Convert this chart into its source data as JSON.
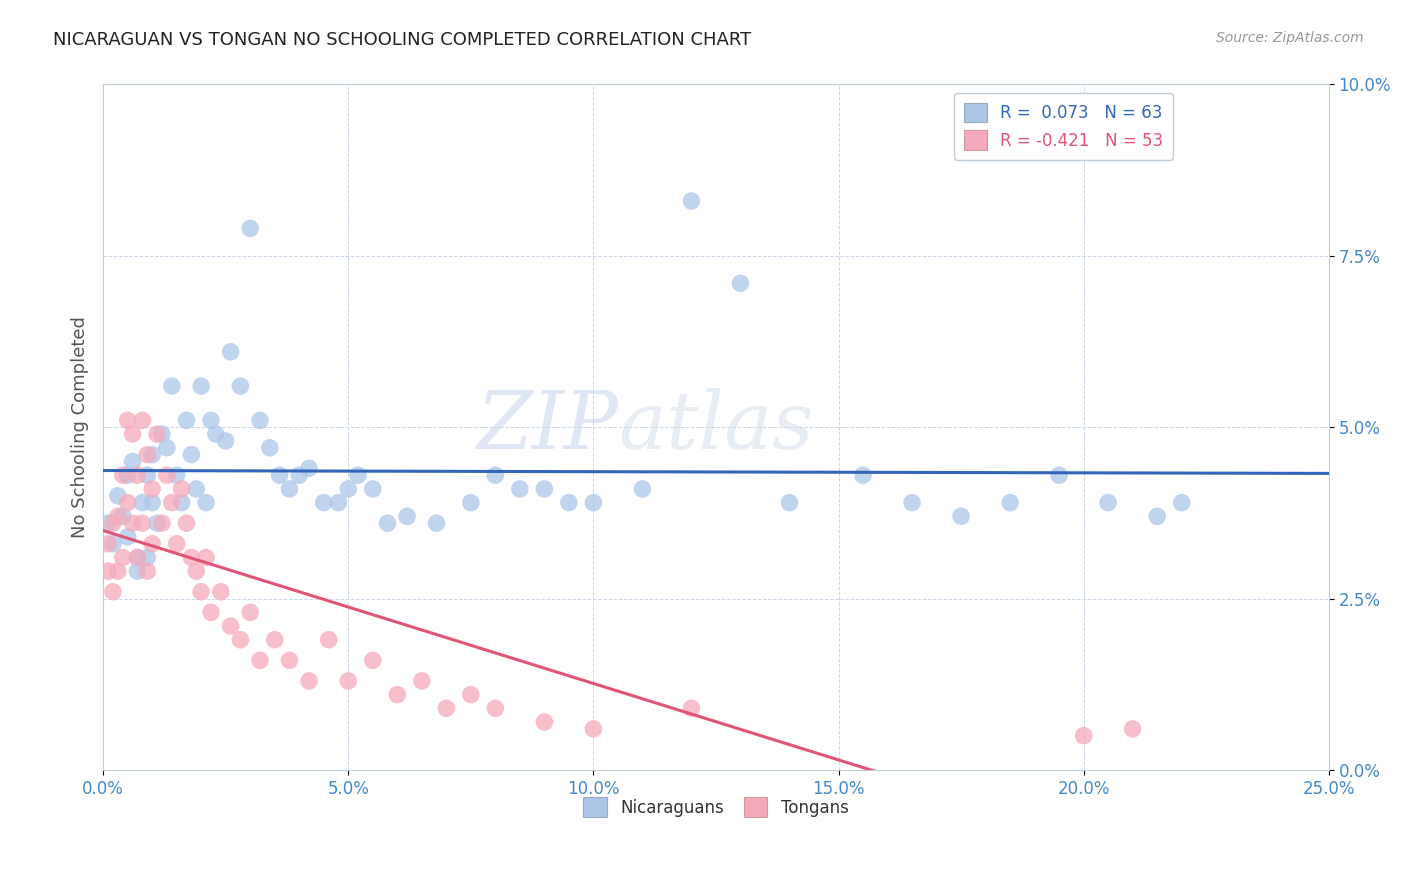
{
  "title": "NICARAGUAN VS TONGAN NO SCHOOLING COMPLETED CORRELATION CHART",
  "source": "Source: ZipAtlas.com",
  "ylabel": "No Schooling Completed",
  "xlim": [
    0.0,
    0.25
  ],
  "ylim": [
    0.0,
    0.1
  ],
  "xticks": [
    0.0,
    0.05,
    0.1,
    0.15,
    0.2,
    0.25
  ],
  "yticks": [
    0.0,
    0.025,
    0.05,
    0.075,
    0.1
  ],
  "nicaraguan_color": "#adc6e8",
  "tongan_color": "#f5aabb",
  "nicaraguan_line_color": "#3366bb",
  "tongan_line_color": "#e05575",
  "legend_label1": "Nicaraguans",
  "legend_label2": "Tongans",
  "R_nic": 0.073,
  "N_nic": 63,
  "R_ton": -0.421,
  "N_ton": 53,
  "background_color": "#ffffff",
  "watermark_zip": "ZIP",
  "watermark_atlas": "atlas",
  "nic_x": [
    0.001,
    0.002,
    0.003,
    0.004,
    0.005,
    0.005,
    0.006,
    0.007,
    0.007,
    0.008,
    0.009,
    0.009,
    0.01,
    0.01,
    0.011,
    0.012,
    0.013,
    0.014,
    0.015,
    0.016,
    0.017,
    0.018,
    0.019,
    0.02,
    0.021,
    0.022,
    0.023,
    0.025,
    0.026,
    0.028,
    0.03,
    0.032,
    0.034,
    0.036,
    0.038,
    0.04,
    0.042,
    0.045,
    0.048,
    0.05,
    0.052,
    0.055,
    0.058,
    0.062,
    0.068,
    0.075,
    0.08,
    0.085,
    0.09,
    0.095,
    0.1,
    0.11,
    0.12,
    0.13,
    0.14,
    0.155,
    0.165,
    0.175,
    0.185,
    0.195,
    0.205,
    0.215,
    0.22
  ],
  "nic_y": [
    0.036,
    0.033,
    0.04,
    0.037,
    0.043,
    0.034,
    0.045,
    0.031,
    0.029,
    0.039,
    0.043,
    0.031,
    0.046,
    0.039,
    0.036,
    0.049,
    0.047,
    0.056,
    0.043,
    0.039,
    0.051,
    0.046,
    0.041,
    0.056,
    0.039,
    0.051,
    0.049,
    0.048,
    0.061,
    0.056,
    0.079,
    0.051,
    0.047,
    0.043,
    0.041,
    0.043,
    0.044,
    0.039,
    0.039,
    0.041,
    0.043,
    0.041,
    0.036,
    0.037,
    0.036,
    0.039,
    0.043,
    0.041,
    0.041,
    0.039,
    0.039,
    0.041,
    0.083,
    0.071,
    0.039,
    0.043,
    0.039,
    0.037,
    0.039,
    0.043,
    0.039,
    0.037,
    0.039
  ],
  "ton_x": [
    0.001,
    0.001,
    0.002,
    0.002,
    0.003,
    0.003,
    0.004,
    0.004,
    0.005,
    0.005,
    0.006,
    0.006,
    0.007,
    0.007,
    0.008,
    0.008,
    0.009,
    0.009,
    0.01,
    0.01,
    0.011,
    0.012,
    0.013,
    0.014,
    0.015,
    0.016,
    0.017,
    0.018,
    0.019,
    0.02,
    0.021,
    0.022,
    0.024,
    0.026,
    0.028,
    0.03,
    0.032,
    0.035,
    0.038,
    0.042,
    0.046,
    0.05,
    0.055,
    0.06,
    0.065,
    0.07,
    0.075,
    0.08,
    0.09,
    0.1,
    0.12,
    0.2,
    0.21
  ],
  "ton_y": [
    0.029,
    0.033,
    0.026,
    0.036,
    0.029,
    0.037,
    0.031,
    0.043,
    0.039,
    0.051,
    0.036,
    0.049,
    0.043,
    0.031,
    0.051,
    0.036,
    0.046,
    0.029,
    0.041,
    0.033,
    0.049,
    0.036,
    0.043,
    0.039,
    0.033,
    0.041,
    0.036,
    0.031,
    0.029,
    0.026,
    0.031,
    0.023,
    0.026,
    0.021,
    0.019,
    0.023,
    0.016,
    0.019,
    0.016,
    0.013,
    0.019,
    0.013,
    0.016,
    0.011,
    0.013,
    0.009,
    0.011,
    0.009,
    0.007,
    0.006,
    0.009,
    0.005,
    0.006
  ]
}
